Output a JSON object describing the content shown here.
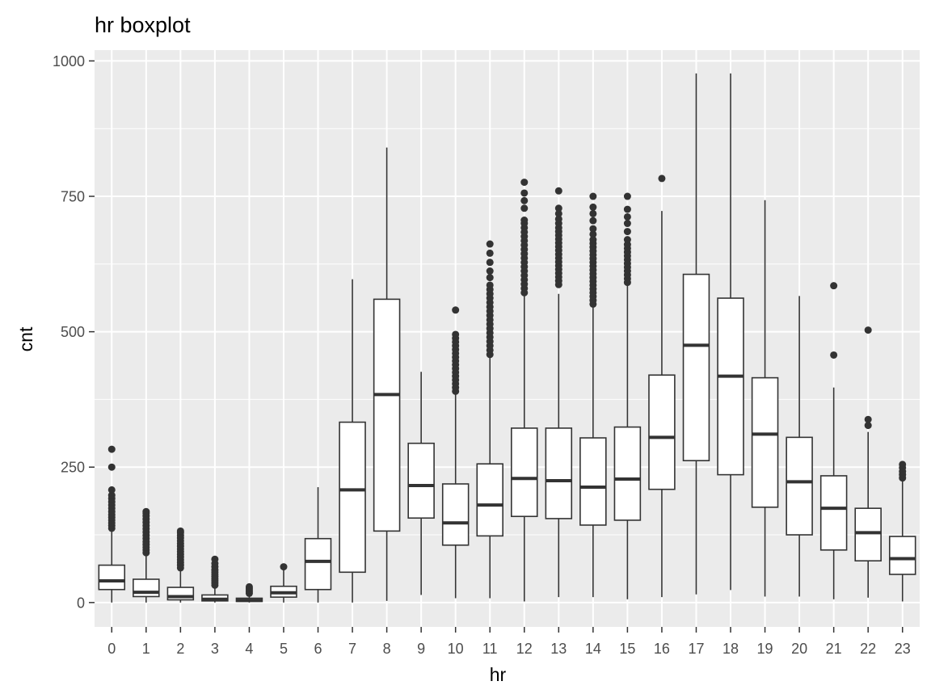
{
  "chart_data": {
    "type": "boxplot",
    "title": "hr boxplot",
    "xlabel": "hr",
    "ylabel": "cnt",
    "ylim": [
      -45,
      1020
    ],
    "yticks": [
      0,
      250,
      500,
      750,
      1000
    ],
    "grid": true,
    "legend": "none",
    "colors": {
      "panel": "#ebebeb",
      "grid": "#ffffff",
      "box_fill": "#ffffff",
      "box_line": "#333333",
      "outlier": "#333333",
      "tick": "#4d4d4d"
    },
    "categories": [
      "0",
      "1",
      "2",
      "3",
      "4",
      "5",
      "6",
      "7",
      "8",
      "9",
      "10",
      "11",
      "12",
      "13",
      "14",
      "15",
      "16",
      "17",
      "18",
      "19",
      "20",
      "21",
      "22",
      "23"
    ],
    "boxes": [
      {
        "q1": 24,
        "median": 40,
        "q3": 69,
        "whisker_low": 0,
        "whisker_high": 135,
        "outliers": [
          137,
          142,
          147,
          152,
          157,
          162,
          168,
          174,
          180,
          186,
          192,
          198,
          208,
          250,
          283
        ]
      },
      {
        "q1": 11,
        "median": 19,
        "q3": 43,
        "whisker_low": 0,
        "whisker_high": 90,
        "outliers": [
          92,
          97,
          102,
          107,
          112,
          118,
          124,
          130,
          136,
          142,
          148,
          154,
          160,
          165,
          168
        ]
      },
      {
        "q1": 5,
        "median": 11,
        "q3": 28,
        "whisker_low": 0,
        "whisker_high": 62,
        "outliers": [
          64,
          69,
          74,
          79,
          84,
          89,
          94,
          99,
          104,
          109,
          114,
          119,
          124,
          129,
          132
        ]
      },
      {
        "q1": 3,
        "median": 6,
        "q3": 14,
        "whisker_low": 0,
        "whisker_high": 30,
        "outliers": [
          32,
          36,
          40,
          44,
          48,
          52,
          56,
          60,
          66,
          72,
          80
        ]
      },
      {
        "q1": 2,
        "median": 4,
        "q3": 8,
        "whisker_low": 0,
        "whisker_high": 15,
        "outliers": [
          17,
          20,
          23,
          26,
          29
        ]
      },
      {
        "q1": 10,
        "median": 18,
        "q3": 30,
        "whisker_low": 0,
        "whisker_high": 60,
        "outliers": [
          66
        ]
      },
      {
        "q1": 24,
        "median": 76,
        "q3": 118,
        "whisker_low": 0,
        "whisker_high": 213,
        "outliers": []
      },
      {
        "q1": 56,
        "median": 208,
        "q3": 333,
        "whisker_low": 0,
        "whisker_high": 597,
        "outliers": []
      },
      {
        "q1": 132,
        "median": 384,
        "q3": 560,
        "whisker_low": 3,
        "whisker_high": 840,
        "outliers": []
      },
      {
        "q1": 156,
        "median": 216,
        "q3": 294,
        "whisker_low": 14,
        "whisker_high": 426,
        "outliers": []
      },
      {
        "q1": 106,
        "median": 147,
        "q3": 219,
        "whisker_low": 8,
        "whisker_high": 386,
        "outliers": [
          390,
          397,
          404,
          411,
          418,
          425,
          432,
          439,
          446,
          453,
          460,
          467,
          474,
          481,
          488,
          495,
          540
        ]
      },
      {
        "q1": 123,
        "median": 180,
        "q3": 256,
        "whisker_low": 8,
        "whisker_high": 455,
        "outliers": [
          458,
          466,
          474,
          482,
          490,
          498,
          506,
          514,
          522,
          530,
          538,
          546,
          554,
          562,
          570,
          578,
          586,
          600,
          612,
          628,
          645,
          662
        ]
      },
      {
        "q1": 159,
        "median": 229,
        "q3": 322,
        "whisker_low": 2,
        "whisker_high": 568,
        "outliers": [
          572,
          580,
          588,
          596,
          604,
          612,
          620,
          628,
          636,
          644,
          652,
          660,
          668,
          676,
          684,
          692,
          700,
          706,
          728,
          742,
          756,
          776
        ]
      },
      {
        "q1": 155,
        "median": 225,
        "q3": 322,
        "whisker_low": 10,
        "whisker_high": 570,
        "outliers": [
          587,
          594,
          601,
          608,
          615,
          622,
          629,
          636,
          643,
          650,
          657,
          664,
          671,
          678,
          685,
          692,
          700,
          708,
          718,
          728,
          760
        ]
      },
      {
        "q1": 143,
        "median": 213,
        "q3": 304,
        "whisker_low": 10,
        "whisker_high": 545,
        "outliers": [
          551,
          558,
          565,
          572,
          579,
          586,
          593,
          600,
          607,
          614,
          621,
          628,
          635,
          642,
          649,
          656,
          663,
          670,
          680,
          690,
          705,
          718,
          730,
          750
        ]
      },
      {
        "q1": 152,
        "median": 228,
        "q3": 324,
        "whisker_low": 6,
        "whisker_high": 588,
        "outliers": [
          591,
          598,
          605,
          612,
          619,
          626,
          633,
          640,
          647,
          654,
          661,
          670,
          685,
          700,
          712,
          726,
          750
        ]
      },
      {
        "q1": 209,
        "median": 305,
        "q3": 420,
        "whisker_low": 10,
        "whisker_high": 723,
        "outliers": [
          783
        ]
      },
      {
        "q1": 262,
        "median": 475,
        "q3": 606,
        "whisker_low": 15,
        "whisker_high": 977,
        "outliers": []
      },
      {
        "q1": 236,
        "median": 418,
        "q3": 562,
        "whisker_low": 23,
        "whisker_high": 977,
        "outliers": []
      },
      {
        "q1": 176,
        "median": 311,
        "q3": 415,
        "whisker_low": 11,
        "whisker_high": 743,
        "outliers": []
      },
      {
        "q1": 125,
        "median": 223,
        "q3": 305,
        "whisker_low": 11,
        "whisker_high": 566,
        "outliers": []
      },
      {
        "q1": 97,
        "median": 174,
        "q3": 234,
        "whisker_low": 6,
        "whisker_high": 397,
        "outliers": [
          457,
          585
        ]
      },
      {
        "q1": 77,
        "median": 129,
        "q3": 174,
        "whisker_low": 9,
        "whisker_high": 315,
        "outliers": [
          327,
          338,
          503
        ]
      },
      {
        "q1": 52,
        "median": 81,
        "q3": 122,
        "whisker_low": 2,
        "whisker_high": 226,
        "outliers": [
          230,
          236,
          242,
          249,
          255
        ]
      }
    ]
  }
}
